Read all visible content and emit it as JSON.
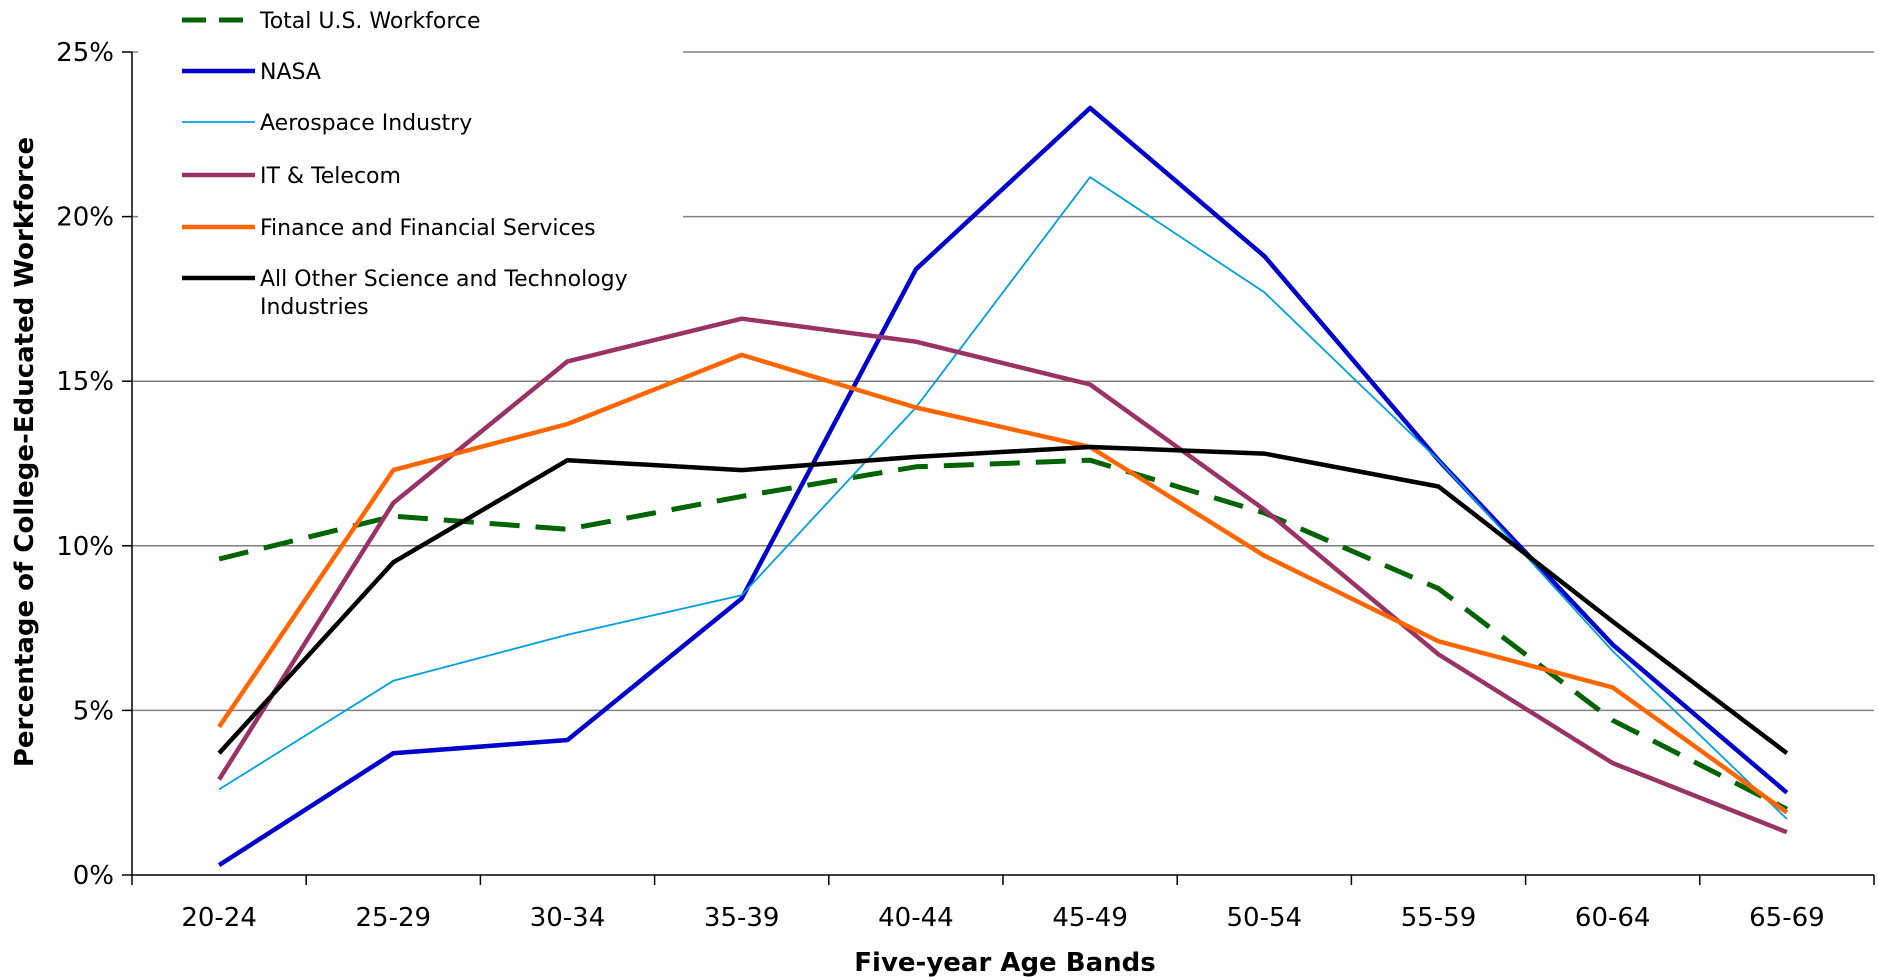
{
  "chart_data": {
    "type": "line",
    "xlabel": "Five-year Age Bands",
    "ylabel": "Percentage of College-Educated Workforce",
    "categories": [
      "20-24",
      "25-29",
      "30-34",
      "35-39",
      "40-44",
      "45-49",
      "50-54",
      "55-59",
      "60-64",
      "65-69"
    ],
    "y_ticks": [
      "0%",
      "5%",
      "10%",
      "15%",
      "20%",
      "25%"
    ],
    "ylim": [
      0,
      25
    ],
    "grid": "horizontal",
    "legend_placement": "top-left",
    "series": [
      {
        "name": "Total U.S. Workforce",
        "color": "#006400",
        "style": "dashed",
        "values": [
          9.6,
          10.9,
          10.5,
          11.5,
          12.4,
          12.6,
          11.0,
          8.7,
          4.7,
          2.0
        ]
      },
      {
        "name": "NASA",
        "color": "#0000CC",
        "style": "solid-thick",
        "values": [
          0.3,
          3.7,
          4.1,
          8.4,
          18.4,
          23.3,
          18.8,
          12.6,
          7.0,
          2.5
        ]
      },
      {
        "name": "Aerospace Industry",
        "color": "#00A0E0",
        "style": "solid-thin",
        "values": [
          2.6,
          5.9,
          7.3,
          8.5,
          14.2,
          21.2,
          17.7,
          12.6,
          6.8,
          1.7
        ]
      },
      {
        "name": "IT & Telecom",
        "color": "#993366",
        "style": "solid-thick",
        "values": [
          2.9,
          11.3,
          15.6,
          16.9,
          16.2,
          14.9,
          11.1,
          6.7,
          3.4,
          1.3
        ]
      },
      {
        "name": "Finance and Financial Services",
        "color": "#FF6600",
        "style": "solid-thick",
        "values": [
          4.5,
          12.3,
          13.7,
          15.8,
          14.2,
          13.0,
          9.7,
          7.1,
          5.7,
          1.9
        ]
      },
      {
        "name": "All Other Science and Technology Industries",
        "name_lines": [
          "All Other Science and Technology",
          "Industries"
        ],
        "color": "#000000",
        "style": "solid-thick",
        "values": [
          3.7,
          9.5,
          12.6,
          12.3,
          12.7,
          13.0,
          12.8,
          11.8,
          7.7,
          3.7
        ]
      }
    ]
  }
}
